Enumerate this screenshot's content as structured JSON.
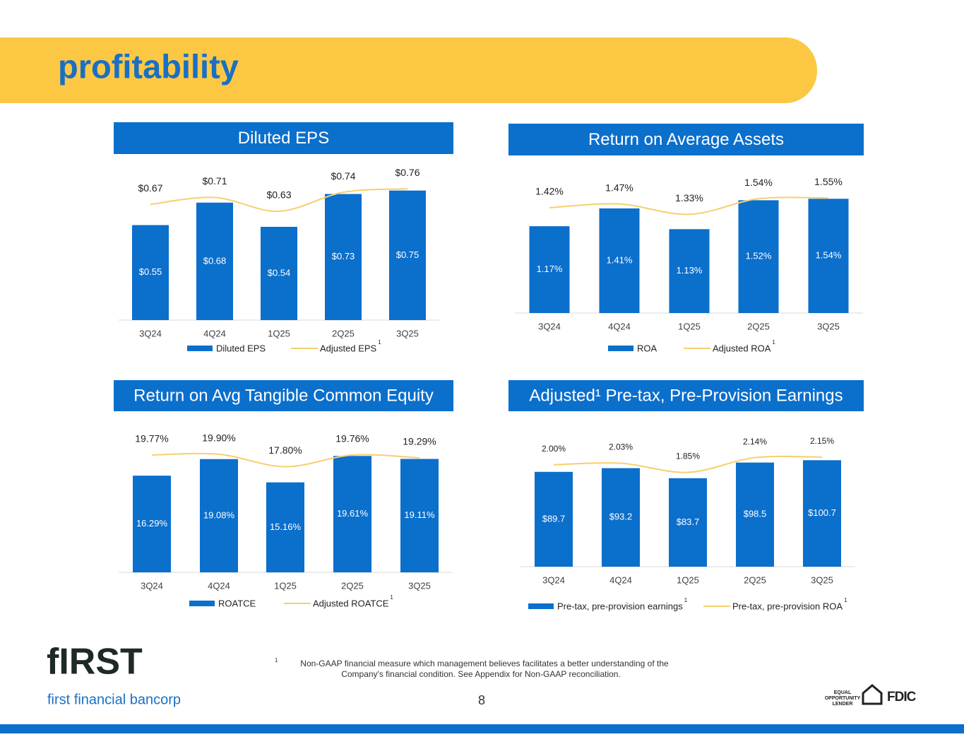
{
  "header": {
    "title": "profitability"
  },
  "chart_data": [
    {
      "type": "bar",
      "title": "Diluted EPS",
      "categories": [
        "3Q24",
        "4Q24",
        "1Q25",
        "2Q25",
        "3Q25"
      ],
      "series": [
        {
          "name": "Diluted EPS",
          "color": "#0b6fcc",
          "values": [
            0.55,
            0.68,
            0.54,
            0.73,
            0.75
          ],
          "value_labels": [
            "$0.55",
            "$0.68",
            "$0.54",
            "$0.73",
            "$0.75"
          ]
        },
        {
          "name": "Adjusted EPS",
          "type": "line",
          "footnote_ref": "1",
          "color": "#f6cf6e",
          "values": [
            0.67,
            0.71,
            0.63,
            0.74,
            0.76
          ],
          "value_labels": [
            "$0.67",
            "$0.71",
            "$0.63",
            "$0.74",
            "$0.76"
          ]
        }
      ],
      "ylim": [
        0,
        0.9
      ]
    },
    {
      "type": "bar",
      "title": "Return on Average Assets",
      "categories": [
        "3Q24",
        "4Q24",
        "1Q25",
        "2Q25",
        "3Q25"
      ],
      "series": [
        {
          "name": "ROA",
          "color": "#0b6fcc",
          "values": [
            1.17,
            1.41,
            1.13,
            1.52,
            1.54
          ],
          "value_labels": [
            "1.17%",
            "1.41%",
            "1.13%",
            "1.52%",
            "1.54%"
          ]
        },
        {
          "name": "Adjusted ROA",
          "type": "line",
          "footnote_ref": "1",
          "color": "#f6cf6e",
          "values": [
            1.42,
            1.47,
            1.33,
            1.54,
            1.55
          ],
          "value_labels": [
            "1.42%",
            "1.47%",
            "1.33%",
            "1.54%",
            "1.55%"
          ]
        }
      ],
      "ylim": [
        0,
        2
      ]
    },
    {
      "type": "bar",
      "title": "Return on Avg Tangible Common Equity",
      "categories": [
        "3Q24",
        "4Q24",
        "1Q25",
        "2Q25",
        "3Q25"
      ],
      "series": [
        {
          "name": "ROATCE",
          "color": "#0b6fcc",
          "values": [
            16.29,
            19.08,
            15.16,
            19.61,
            19.11
          ],
          "value_labels": [
            "16.29%",
            "19.08%",
            "15.16%",
            "19.61%",
            "19.11%"
          ]
        },
        {
          "name": "Adjusted ROATCE",
          "type": "line",
          "footnote_ref": "1",
          "color": "#f6cf6e",
          "values": [
            19.77,
            19.9,
            17.8,
            19.76,
            19.29
          ],
          "value_labels": [
            "19.77%",
            "19.90%",
            "17.80%",
            "19.76%",
            "19.29%"
          ]
        }
      ],
      "ylim": [
        0,
        25
      ]
    },
    {
      "type": "bar",
      "title": "Adjusted¹ Pre-tax, Pre-Provision Earnings",
      "categories": [
        "3Q24",
        "4Q24",
        "1Q25",
        "2Q25",
        "3Q25"
      ],
      "series": [
        {
          "name": "Pre-tax, pre-provision earnings",
          "footnote_ref": "1",
          "color": "#0b6fcc",
          "values": [
            89.7,
            93.2,
            83.7,
            98.5,
            100.7
          ],
          "value_labels": [
            "$89.7",
            "$93.2",
            "$83.7",
            "$98.5",
            "$100.7"
          ]
        },
        {
          "name": "Pre-tax, pre-provision ROA",
          "type": "line",
          "axis": "y2",
          "footnote_ref": "1",
          "color": "#f6cf6e",
          "values": [
            2.0,
            2.03,
            1.85,
            2.14,
            2.15
          ],
          "value_labels": [
            "2.00%",
            "2.03%",
            "1.85%",
            "2.14%",
            "2.15%"
          ]
        }
      ],
      "ylim": [
        0,
        135
      ],
      "y2lim": [
        0,
        2.8
      ]
    }
  ],
  "footnote": {
    "marker": "1",
    "lines": [
      "Non-GAAP financial measure which management believes facilitates a better understanding of the",
      "Company's financial condition.  See Appendix for Non-GAAP reconciliation."
    ]
  },
  "page_number": "8",
  "logo": {
    "wordmark": "fIRST",
    "name": "first financial bancorp"
  },
  "badges": {
    "equal_housing": [
      "EQUAL",
      "OPPORTUNITY",
      "LENDER"
    ],
    "fdic": "FDIC"
  }
}
